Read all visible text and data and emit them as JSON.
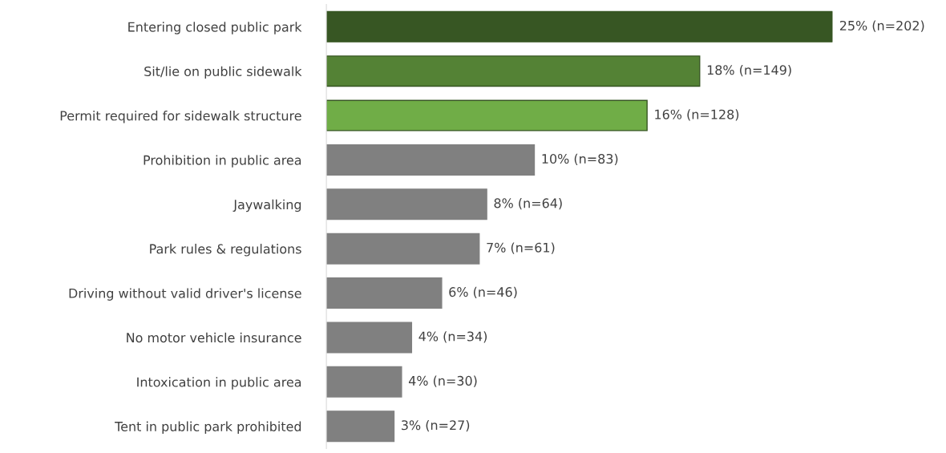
{
  "chart_data": {
    "type": "bar",
    "orientation": "horizontal",
    "tick_labels": "y",
    "categories": [
      "Entering closed public park",
      "Sit/lie on public sidewalk",
      "Permit required for sidewalk structure",
      "Prohibition in public area",
      "Jaywalking",
      "Park rules & regulations",
      "Driving without valid driver's license",
      "No motor vehicle insurance",
      "Intoxication in public area",
      "Tent in public park prohibited"
    ],
    "values": [
      202,
      149,
      128,
      83,
      64,
      61,
      46,
      34,
      30,
      27
    ],
    "colors": [
      "#375623",
      "#548235",
      "#70ad47",
      "#808080",
      "#808080",
      "#808080",
      "#808080",
      "#808080",
      "#808080",
      "#808080"
    ],
    "value_labels": [
      "25% (n=202)",
      "18% (n=149)",
      "16% (n=128)",
      "10% (n=83)",
      "8% (n=64)",
      "7% (n=61)",
      "6% (n=46)",
      "4% (n=34)",
      "4% (n=30)",
      "3% (n=27)"
    ]
  }
}
